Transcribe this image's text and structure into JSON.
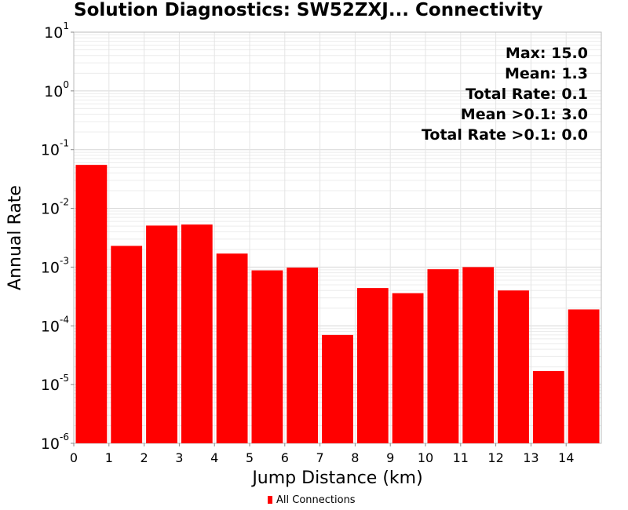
{
  "chart_data": {
    "type": "bar",
    "title": "Solution Diagnostics: SW52ZXJ... Connectivity",
    "xlabel": "Jump Distance (km)",
    "ylabel": "Annual Rate",
    "yscale": "log",
    "ylim": [
      1e-06,
      10
    ],
    "xlim": [
      0,
      15
    ],
    "x_ticks": [
      0,
      1,
      2,
      3,
      4,
      5,
      6,
      7,
      8,
      9,
      10,
      11,
      12,
      13,
      14
    ],
    "y_tick_labels": [
      {
        "base": "10",
        "exp": "1",
        "value": 10
      },
      {
        "base": "10",
        "exp": "0",
        "value": 1
      },
      {
        "base": "10",
        "exp": "-1",
        "value": 0.1
      },
      {
        "base": "10",
        "exp": "-2",
        "value": 0.01
      },
      {
        "base": "10",
        "exp": "-3",
        "value": 0.001
      },
      {
        "base": "10",
        "exp": "-4",
        "value": 0.0001
      },
      {
        "base": "10",
        "exp": "-5",
        "value": 1e-05
      },
      {
        "base": "10",
        "exp": "-6",
        "value": 1e-06
      }
    ],
    "grid": true,
    "bar_color": "#ff0000",
    "bins": [
      [
        0,
        1
      ],
      [
        1,
        2
      ],
      [
        2,
        3
      ],
      [
        3,
        4
      ],
      [
        4,
        5
      ],
      [
        5,
        6
      ],
      [
        6,
        7
      ],
      [
        7,
        8
      ],
      [
        8,
        9
      ],
      [
        9,
        10
      ],
      [
        10,
        11
      ],
      [
        11,
        12
      ],
      [
        12,
        13
      ],
      [
        13,
        14
      ],
      [
        14,
        15
      ]
    ],
    "values": [
      0.055,
      0.0023,
      0.0051,
      0.0053,
      0.0017,
      0.00088,
      0.00098,
      7e-05,
      0.00044,
      0.00036,
      0.00092,
      0.001,
      0.0004,
      1.7e-05,
      0.00019
    ],
    "series": [
      {
        "name": "All Connections",
        "color": "#ff0000"
      }
    ],
    "legend_position": "bottom-center",
    "annotations": [
      "Max: 15.0",
      "Mean: 1.3",
      "Total Rate: 0.1",
      "Mean >0.1: 3.0",
      "Total Rate >0.1: 0.0"
    ],
    "annotation_position": "top-right"
  }
}
